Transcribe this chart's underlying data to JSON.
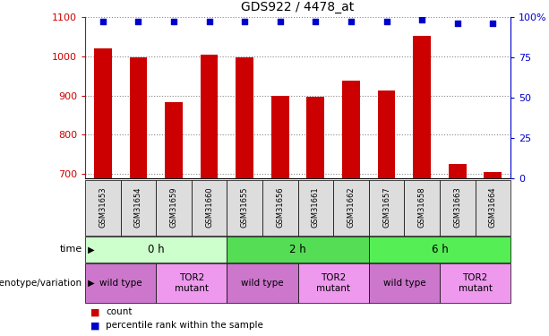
{
  "title": "GDS922 / 4478_at",
  "samples": [
    "GSM31653",
    "GSM31654",
    "GSM31659",
    "GSM31660",
    "GSM31655",
    "GSM31656",
    "GSM31661",
    "GSM31662",
    "GSM31657",
    "GSM31658",
    "GSM31663",
    "GSM31664"
  ],
  "counts": [
    1020,
    997,
    882,
    1003,
    997,
    898,
    897,
    938,
    912,
    1052,
    727,
    705
  ],
  "percentiles": [
    97,
    97,
    97,
    97,
    97,
    97,
    97,
    97,
    97,
    98,
    96,
    96
  ],
  "ylim_left": [
    690,
    1100
  ],
  "ylim_right": [
    0,
    100
  ],
  "yticks_left": [
    700,
    800,
    900,
    1000,
    1100
  ],
  "yticks_right": [
    0,
    25,
    50,
    75,
    100
  ],
  "bar_color": "#cc0000",
  "dot_color": "#0000cc",
  "bar_bottom": 690,
  "time_groups": [
    {
      "label": "0 h",
      "start": 0,
      "end": 4,
      "color": "#ccffcc"
    },
    {
      "label": "2 h",
      "start": 4,
      "end": 8,
      "color": "#55dd55"
    },
    {
      "label": "6 h",
      "start": 8,
      "end": 12,
      "color": "#55ee55"
    }
  ],
  "genotype_groups": [
    {
      "label": "wild type",
      "start": 0,
      "end": 2,
      "color": "#cc77cc"
    },
    {
      "label": "TOR2\nmutant",
      "start": 2,
      "end": 4,
      "color": "#ee99ee"
    },
    {
      "label": "wild type",
      "start": 4,
      "end": 6,
      "color": "#cc77cc"
    },
    {
      "label": "TOR2\nmutant",
      "start": 6,
      "end": 8,
      "color": "#ee99ee"
    },
    {
      "label": "wild type",
      "start": 8,
      "end": 10,
      "color": "#cc77cc"
    },
    {
      "label": "TOR2\nmutant",
      "start": 10,
      "end": 12,
      "color": "#ee99ee"
    }
  ],
  "row_label_time": "time",
  "row_label_genotype": "genotype/variation",
  "legend_count": "count",
  "legend_percentile": "percentile rank within the sample",
  "background_color": "#ffffff",
  "grid_color": "#888888",
  "axis_left_color": "#cc0000",
  "axis_right_color": "#0000cc",
  "sample_box_color": "#dddddd",
  "time_colors": [
    "#ccffcc",
    "#55dd55",
    "#55ee55"
  ]
}
